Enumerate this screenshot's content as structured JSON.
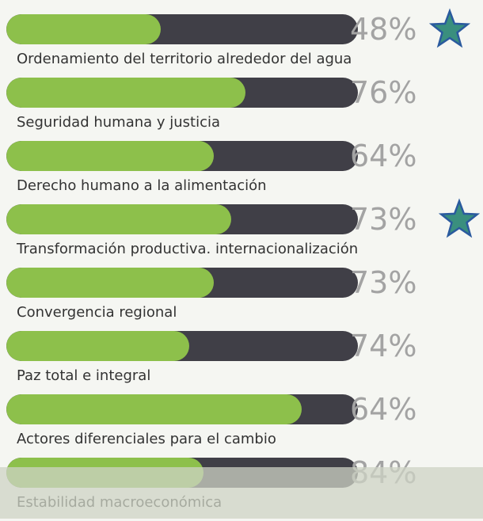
{
  "items": [
    {
      "label": "Ordenamiento del territorio alrededor del agua",
      "percent": "48%",
      "fill": 44,
      "starred": true
    },
    {
      "label": "Seguridad humana y justicia",
      "percent": "76%",
      "fill": 68,
      "starred": false
    },
    {
      "label": "Derecho humano a la alimentación",
      "percent": "64%",
      "fill": 59,
      "starred": false
    },
    {
      "label": "Transformación productiva. internacionalización",
      "percent": "73%",
      "fill": 64,
      "starred": true
    },
    {
      "label": "Convergencia regional",
      "percent": "73%",
      "fill": 59,
      "starred": false
    },
    {
      "label": "Paz total e integral",
      "percent": "74%",
      "fill": 52,
      "starred": false
    },
    {
      "label": "Actores diferenciales para el cambio",
      "percent": "64%",
      "fill": 84,
      "starred": false
    },
    {
      "label": "Estabilidad macroeconómica",
      "percent": "84%",
      "fill": 56,
      "starred": false
    }
  ]
}
